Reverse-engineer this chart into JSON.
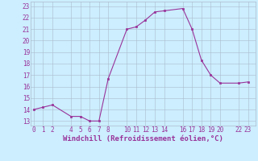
{
  "x": [
    0,
    1,
    2,
    4,
    5,
    6,
    7,
    8,
    10,
    11,
    12,
    13,
    14,
    16,
    17,
    18,
    19,
    20,
    22,
    23
  ],
  "y": [
    14.0,
    14.2,
    14.4,
    13.4,
    13.4,
    13.0,
    13.0,
    16.7,
    21.0,
    21.2,
    21.8,
    22.5,
    22.6,
    22.8,
    21.0,
    18.3,
    17.0,
    16.3,
    16.3,
    16.4
  ],
  "line_color": "#993399",
  "marker_color": "#993399",
  "bg_color": "#cceeff",
  "grid_color": "#aabbcc",
  "xlabel": "Windchill (Refroidissement éolien,°C)",
  "xlabel_color": "#993399",
  "yticks": [
    13,
    14,
    15,
    16,
    17,
    18,
    19,
    20,
    21,
    22,
    23
  ],
  "xticks": [
    0,
    1,
    2,
    4,
    5,
    6,
    7,
    8,
    10,
    11,
    12,
    13,
    14,
    16,
    17,
    18,
    19,
    20,
    22,
    23
  ],
  "xlim": [
    -0.3,
    23.8
  ],
  "ylim": [
    12.6,
    23.4
  ],
  "tick_color": "#993399",
  "tick_fontsize": 5.5,
  "xlabel_fontsize": 6.5,
  "linewidth": 0.8,
  "markersize": 1.8
}
